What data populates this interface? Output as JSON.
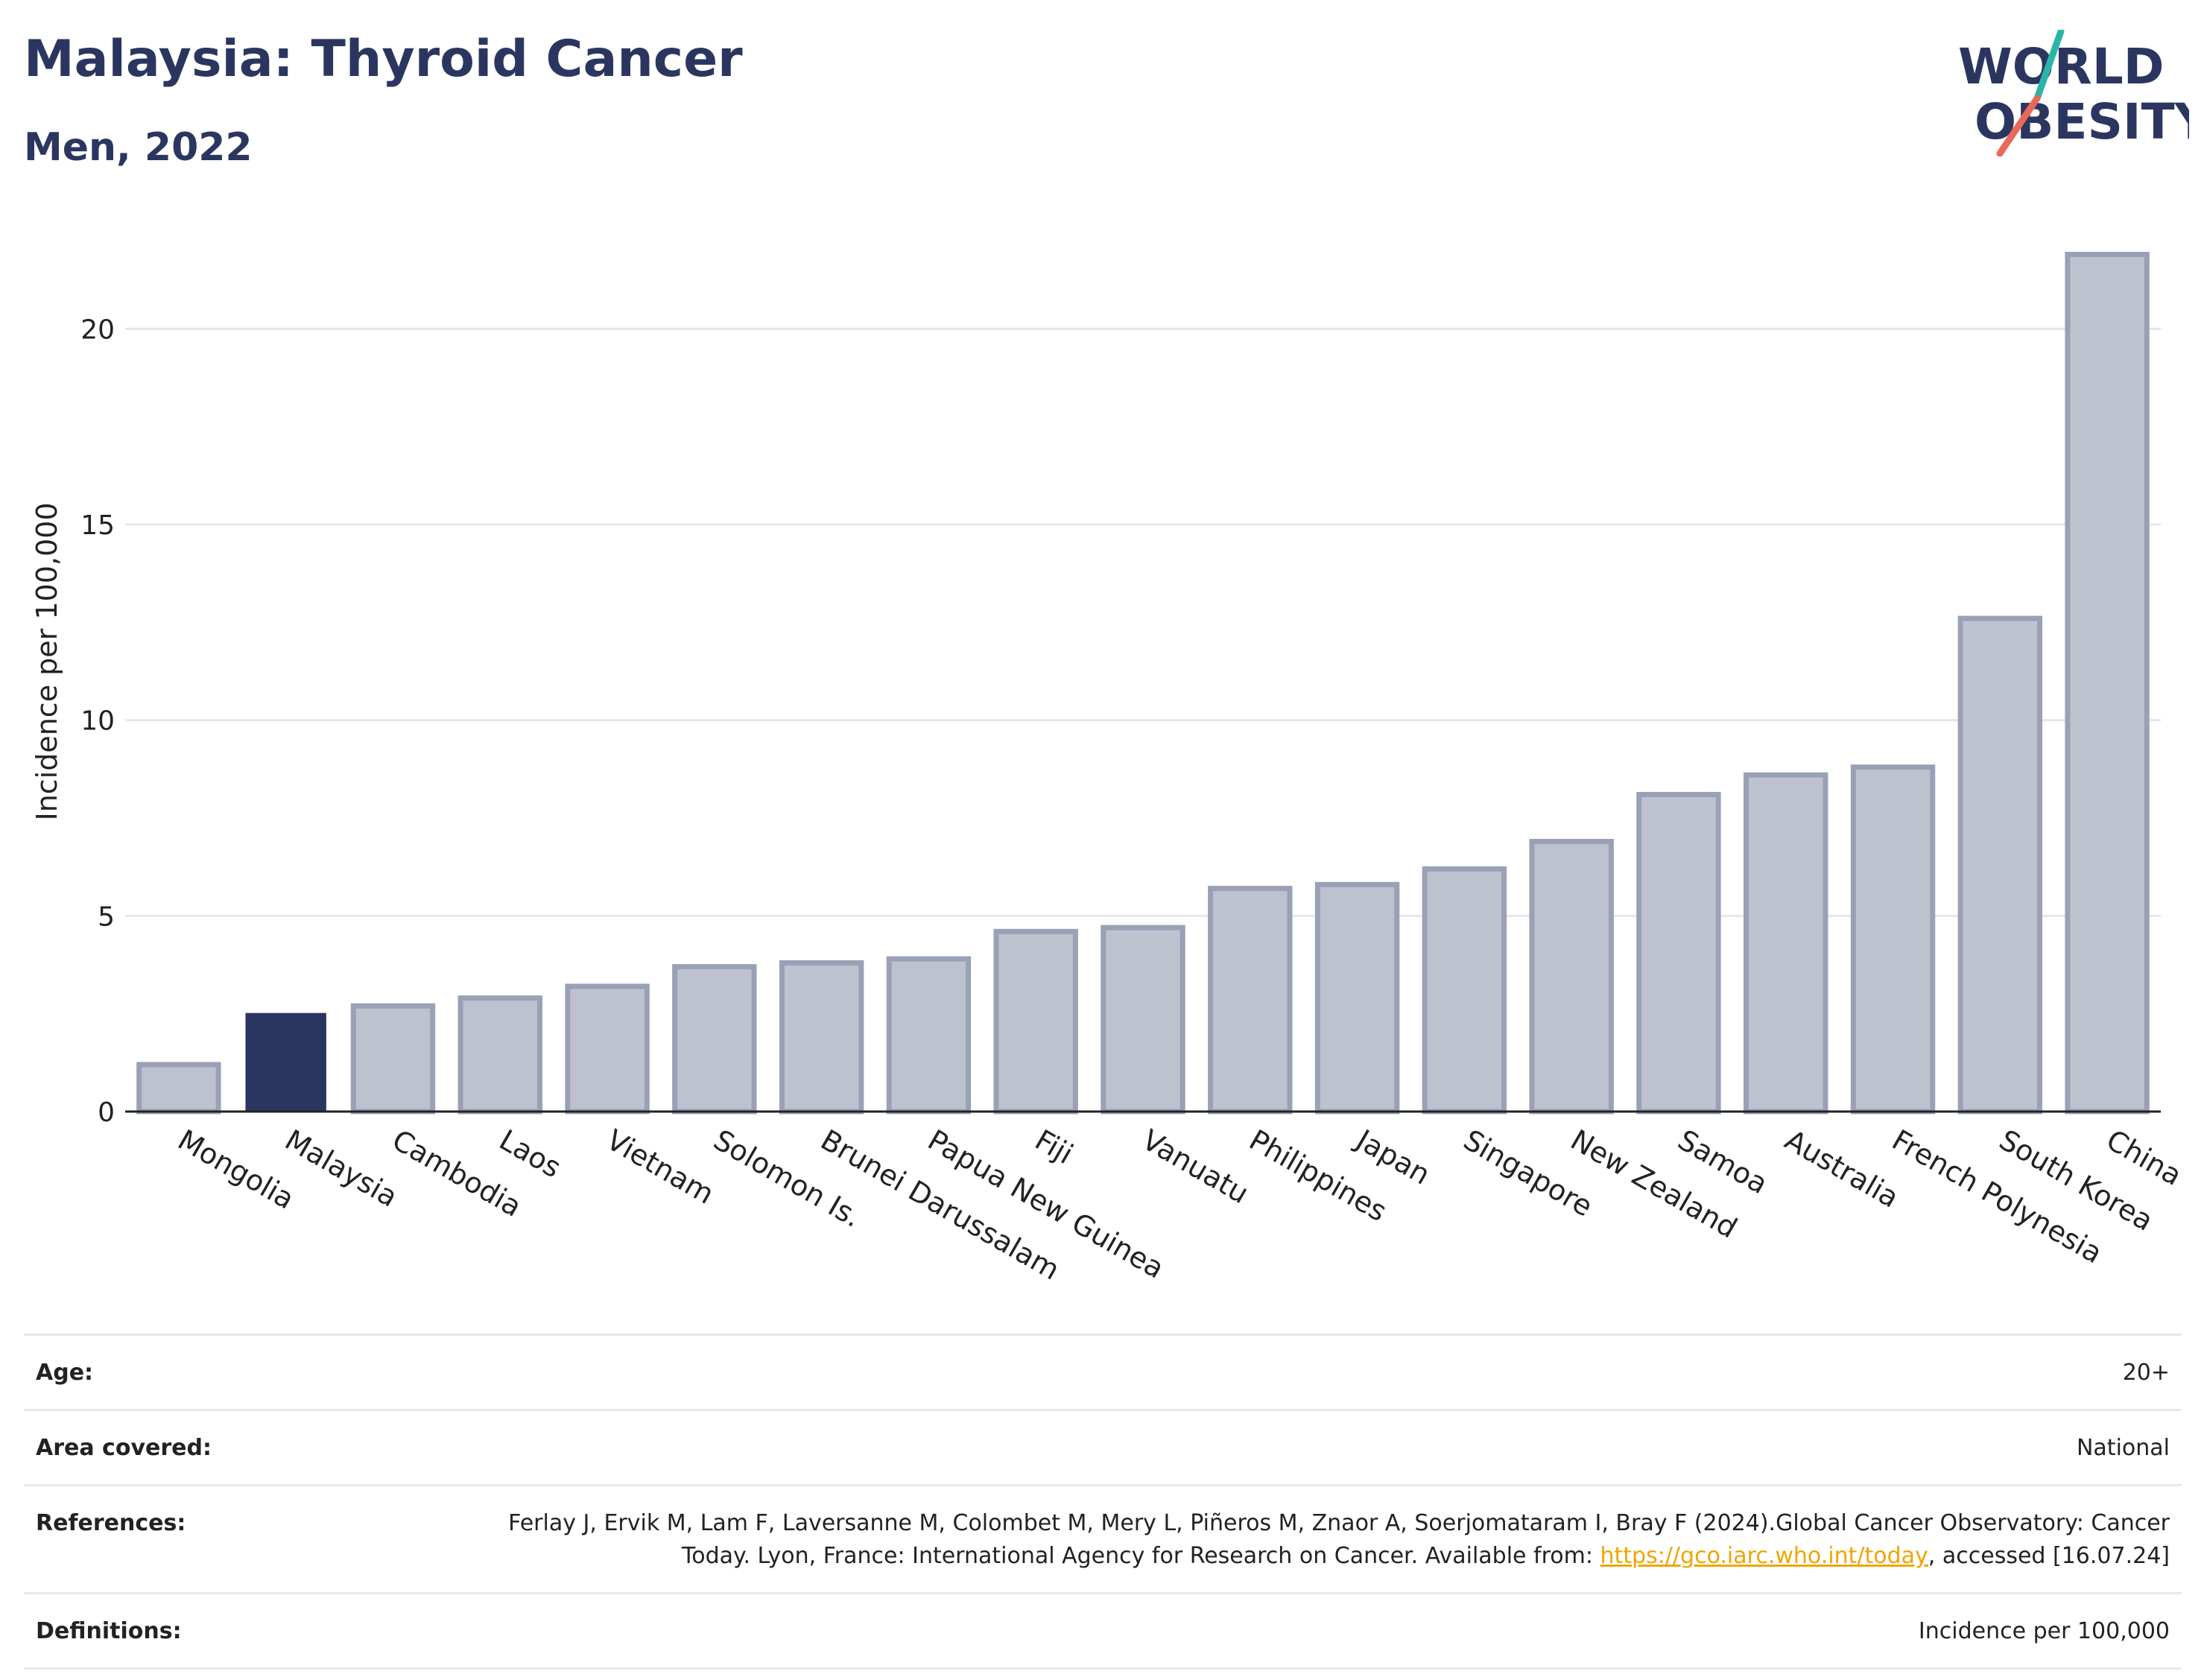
{
  "header": {
    "title": "Malaysia: Thyroid Cancer",
    "subtitle": "Men, 2022",
    "logo_line1": "WORLD",
    "logo_line2": "OBESITY"
  },
  "colors": {
    "highlight": "#2b3660",
    "bar_fill": "#bec2cf",
    "bar_stroke": "#9aa0b6",
    "grid": "#e6e6ec",
    "logo_teal": "#2bb5a6",
    "logo_coral": "#e8685a",
    "link": "#f0a500"
  },
  "chart_data": {
    "type": "bar",
    "title": "Malaysia: Thyroid Cancer",
    "subtitle": "Men, 2022",
    "xlabel": "",
    "ylabel": "Incidence per 100,000",
    "ylim": [
      0,
      22.5
    ],
    "yticks": [
      0,
      5,
      10,
      15,
      20
    ],
    "grid": true,
    "highlight": "Malaysia",
    "categories": [
      "Mongolia",
      "Malaysia",
      "Cambodia",
      "Laos",
      "Vietnam",
      "Solomon Is.",
      "Brunei Darussalam",
      "Papua New Guinea",
      "Fiji",
      "Vanuatu",
      "Philippines",
      "Japan",
      "Singapore",
      "New Zealand",
      "Samoa",
      "Australia",
      "French Polynesia",
      "South Korea",
      "China"
    ],
    "values": [
      1.2,
      2.5,
      2.7,
      2.9,
      3.2,
      3.7,
      3.8,
      3.9,
      4.6,
      4.7,
      5.7,
      5.8,
      6.2,
      6.9,
      8.1,
      8.6,
      8.8,
      12.6,
      21.9
    ]
  },
  "meta": {
    "age_label": "Age:",
    "age_value": "20+",
    "area_label": "Area covered:",
    "area_value": "National",
    "references_label": "References:",
    "references_text1": "Ferlay J, Ervik M, Lam F, Laversanne M, Colombet M, Mery L, Piñeros M, Znaor A, Soerjomataram I, Bray F (2024).Global Cancer Observatory: Cancer Today. Lyon, France: International Agency for Research on Cancer. Available from: ",
    "references_link": "https://gco.iarc.who.int/today",
    "references_text2": ", accessed [16.07.24]",
    "definitions_label": "Definitions:",
    "definitions_value": "Incidence per 100,000"
  }
}
